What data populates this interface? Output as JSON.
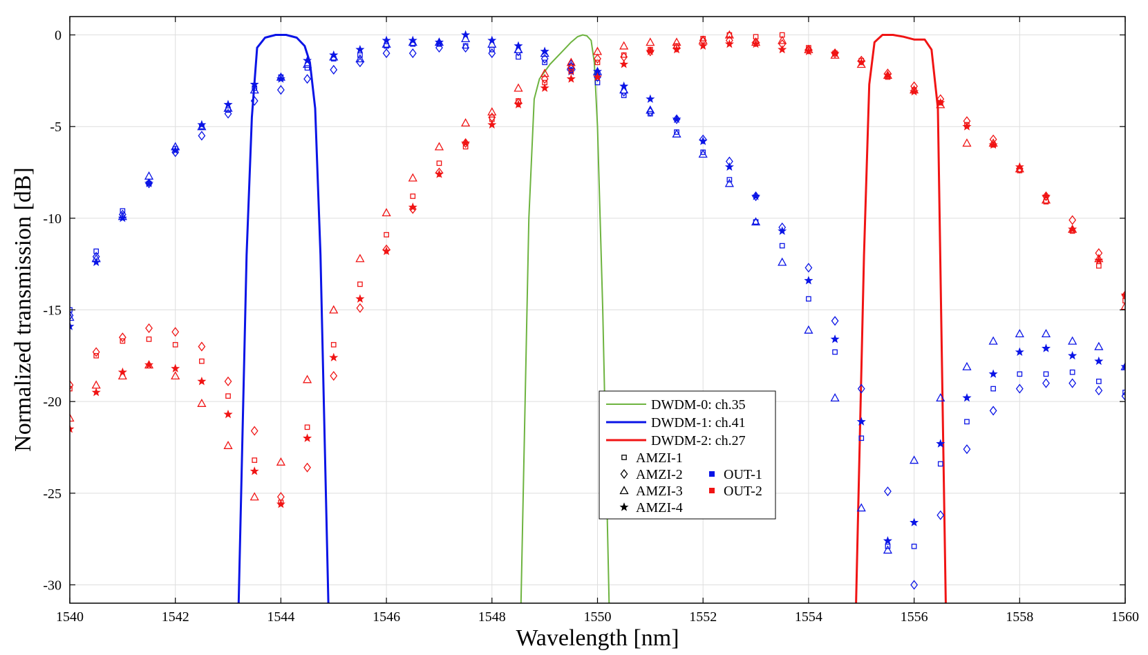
{
  "chart_data": {
    "type": "scatter",
    "title": "",
    "xlabel": "Wavelength [nm]",
    "ylabel": "Normalized transmission [dB]",
    "xlim": [
      1540,
      1560
    ],
    "ylim": [
      -31,
      1
    ],
    "xticks": [
      1540,
      1542,
      1544,
      1546,
      1548,
      1550,
      1552,
      1554,
      1556,
      1558,
      1560
    ],
    "yticks": [
      0,
      -5,
      -10,
      -15,
      -20,
      -25,
      -30
    ],
    "grid": true,
    "colors": {
      "OUT-1": "#0a14e6",
      "OUT-2": "#f01414",
      "DWDM-0": "#6db33f",
      "DWDM-1": "#0a14e6",
      "DWDM-2": "#f01414"
    },
    "lines": [
      {
        "name": "DWDM-0: ch.35",
        "color": "#6db33f",
        "width": 2,
        "x": [
          1548.55,
          1548.7,
          1548.8,
          1548.9,
          1549.1,
          1549.3,
          1549.5,
          1549.62,
          1549.72,
          1549.8,
          1549.88,
          1549.94,
          1550.0,
          1550.1,
          1550.22
        ],
        "y": [
          -31,
          -10,
          -3.5,
          -2.4,
          -1.6,
          -1.0,
          -0.4,
          -0.1,
          0,
          -0.05,
          -0.3,
          -1.5,
          -5,
          -15,
          -31
        ]
      },
      {
        "name": "DWDM-1: ch.41",
        "color": "#0a14e6",
        "width": 3,
        "x": [
          1543.2,
          1543.35,
          1543.45,
          1543.55,
          1543.7,
          1543.9,
          1544.1,
          1544.3,
          1544.45,
          1544.55,
          1544.65,
          1544.75,
          1544.9
        ],
        "y": [
          -31,
          -12,
          -4.5,
          -0.7,
          -0.15,
          0,
          0,
          -0.15,
          -0.6,
          -1.5,
          -4,
          -12,
          -31
        ]
      },
      {
        "name": "DWDM-2: ch.27",
        "color": "#f01414",
        "width": 3,
        "x": [
          1554.9,
          1555.05,
          1555.15,
          1555.25,
          1555.4,
          1555.6,
          1555.8,
          1556.0,
          1556.2,
          1556.33,
          1556.45,
          1556.6
        ],
        "y": [
          -31,
          -12,
          -2.7,
          -0.4,
          0,
          0,
          -0.1,
          -0.25,
          -0.25,
          -0.8,
          -4,
          -31
        ]
      }
    ],
    "scatter_series": [
      {
        "name": "OUT-1 AMZI-1",
        "output": "OUT-1",
        "marker": "square",
        "x": [
          1540,
          1540.5,
          1541,
          1541.5,
          1542,
          1542.5,
          1543,
          1543.5,
          1544,
          1544.5,
          1545,
          1545.5,
          1546,
          1546.5,
          1547,
          1547.5,
          1548,
          1548.5,
          1549,
          1549.5,
          1550,
          1550.5,
          1551,
          1551.5,
          1552,
          1552.5,
          1553,
          1553.5,
          1554,
          1554.5,
          1555,
          1555.5,
          1556,
          1556.5,
          1557,
          1557.5,
          1558,
          1558.5,
          1559,
          1559.5,
          1560
        ],
        "y": [
          -15.0,
          -11.8,
          -9.6,
          -8.1,
          -6.2,
          -5.0,
          -4.1,
          -2.9,
          -2.3,
          -1.8,
          -1.3,
          -1.1,
          -0.6,
          -0.5,
          -0.5,
          -0.6,
          -0.8,
          -1.2,
          -1.5,
          -1.7,
          -2.6,
          -3.3,
          -4.3,
          -5.3,
          -6.4,
          -7.9,
          -10.2,
          -11.5,
          -14.4,
          -17.3,
          -22.0,
          -27.9,
          -27.9,
          -23.4,
          -21.1,
          -19.3,
          -18.5,
          -18.5,
          -18.4,
          -18.9,
          -19.5
        ]
      },
      {
        "name": "OUT-1 AMZI-2",
        "output": "OUT-1",
        "marker": "diamond",
        "x": [
          1540,
          1540.5,
          1541,
          1541.5,
          1542,
          1542.5,
          1543,
          1543.5,
          1544,
          1544.5,
          1545,
          1545.5,
          1546,
          1546.5,
          1547,
          1547.5,
          1548,
          1548.5,
          1549,
          1549.5,
          1550,
          1550.5,
          1551,
          1551.5,
          1552,
          1552.5,
          1553,
          1553.5,
          1554,
          1554.5,
          1555,
          1555.5,
          1556,
          1556.5,
          1557,
          1557.5,
          1558,
          1558.5,
          1559,
          1559.5,
          1560
        ],
        "y": [
          -15.3,
          -12.1,
          -9.8,
          -8.1,
          -6.4,
          -5.5,
          -4.3,
          -3.6,
          -3.0,
          -2.4,
          -1.9,
          -1.5,
          -1.0,
          -1.0,
          -0.7,
          -0.7,
          -1.0,
          -0.9,
          -1.3,
          -1.6,
          -2.3,
          -3.1,
          -4.2,
          -4.6,
          -5.7,
          -6.9,
          -8.8,
          -10.5,
          -12.7,
          -15.6,
          -19.3,
          -24.9,
          -30.0,
          -26.2,
          -22.6,
          -20.5,
          -19.3,
          -19.0,
          -19.0,
          -19.4,
          -19.7
        ]
      },
      {
        "name": "OUT-1 AMZI-3",
        "output": "OUT-1",
        "marker": "triangle",
        "x": [
          1540,
          1540.5,
          1541,
          1541.5,
          1542,
          1542.5,
          1543,
          1543.5,
          1544,
          1544.5,
          1545,
          1545.5,
          1546,
          1546.5,
          1547,
          1547.5,
          1548,
          1548.5,
          1549,
          1549.5,
          1550,
          1550.5,
          1551,
          1551.5,
          1552,
          1552.5,
          1553,
          1553.5,
          1554,
          1554.5,
          1555,
          1555.5,
          1556,
          1556.5,
          1557,
          1557.5,
          1558,
          1558.5,
          1559,
          1559.5,
          1560
        ],
        "y": [
          -15.4,
          -12.2,
          -9.9,
          -7.7,
          -6.1,
          -5.0,
          -4.0,
          -3.0,
          -2.3,
          -1.6,
          -1.2,
          -1.3,
          -0.5,
          -0.4,
          -0.4,
          -0.2,
          -0.5,
          -0.8,
          -1.0,
          -1.7,
          -2.0,
          -3.0,
          -4.1,
          -5.4,
          -6.5,
          -8.1,
          -10.2,
          -12.4,
          -16.1,
          -19.8,
          -25.8,
          -28.1,
          -23.2,
          -19.8,
          -18.1,
          -16.7,
          -16.3,
          -16.3,
          -16.7,
          -17.0,
          -18.1
        ]
      },
      {
        "name": "OUT-1 AMZI-4",
        "output": "OUT-1",
        "marker": "star",
        "x": [
          1540,
          1540.5,
          1541,
          1541.5,
          1542,
          1542.5,
          1543,
          1543.5,
          1544,
          1544.5,
          1545,
          1545.5,
          1546,
          1546.5,
          1547,
          1547.5,
          1548,
          1548.5,
          1549,
          1549.5,
          1550,
          1550.5,
          1551,
          1551.5,
          1552,
          1552.5,
          1553,
          1553.5,
          1554,
          1554.5,
          1555,
          1555.5,
          1556,
          1556.5,
          1557,
          1557.5,
          1558,
          1558.5,
          1559,
          1559.5,
          1560
        ],
        "y": [
          -15.9,
          -12.4,
          -10.0,
          -8.1,
          -6.3,
          -4.9,
          -3.8,
          -2.7,
          -2.4,
          -1.4,
          -1.1,
          -0.8,
          -0.3,
          -0.3,
          -0.4,
          0.0,
          -0.3,
          -0.6,
          -0.9,
          -2.0,
          -2.0,
          -2.8,
          -3.5,
          -4.6,
          -5.8,
          -7.2,
          -8.8,
          -10.7,
          -13.4,
          -16.6,
          -21.1,
          -27.6,
          -26.6,
          -22.3,
          -19.8,
          -18.5,
          -17.3,
          -17.1,
          -17.5,
          -17.8,
          -18.1
        ]
      },
      {
        "name": "OUT-2 AMZI-1",
        "output": "OUT-2",
        "marker": "square",
        "x": [
          1540,
          1540.5,
          1541,
          1541.5,
          1542,
          1542.5,
          1543,
          1543.5,
          1544,
          1544.5,
          1545,
          1545.5,
          1546,
          1546.5,
          1547,
          1547.5,
          1548,
          1548.5,
          1549,
          1549.5,
          1550,
          1550.5,
          1551,
          1551.5,
          1552,
          1552.5,
          1553,
          1553.5,
          1554,
          1554.5,
          1555,
          1555.5,
          1556,
          1556.5,
          1557,
          1557.5,
          1558,
          1558.5,
          1559,
          1559.5,
          1560
        ],
        "y": [
          -19.3,
          -17.5,
          -16.7,
          -16.6,
          -16.9,
          -17.8,
          -19.7,
          -23.2,
          -25.5,
          -21.4,
          -16.9,
          -13.6,
          -10.9,
          -8.8,
          -7.0,
          -6.1,
          -4.6,
          -3.6,
          -2.6,
          -2.0,
          -1.5,
          -1.1,
          -0.8,
          -0.6,
          -0.2,
          0.0,
          -0.1,
          0.0,
          -0.7,
          -1.0,
          -1.4,
          -2.3,
          -3.0,
          -3.7,
          -4.9,
          -6.0,
          -7.4,
          -9.1,
          -10.7,
          -12.6,
          -14.5
        ]
      },
      {
        "name": "OUT-2 AMZI-2",
        "output": "OUT-2",
        "marker": "diamond",
        "x": [
          1540,
          1540.5,
          1541,
          1541.5,
          1542,
          1542.5,
          1543,
          1543.5,
          1544,
          1544.5,
          1545,
          1545.5,
          1546,
          1546.5,
          1547,
          1547.5,
          1548,
          1548.5,
          1549,
          1549.5,
          1550,
          1550.5,
          1551,
          1551.5,
          1552,
          1552.5,
          1553,
          1553.5,
          1554,
          1554.5,
          1555,
          1555.5,
          1556,
          1556.5,
          1557,
          1557.5,
          1558,
          1558.5,
          1559,
          1559.5,
          1560
        ],
        "y": [
          -19.1,
          -17.3,
          -16.5,
          -16.0,
          -16.2,
          -17.0,
          -18.9,
          -21.6,
          -25.2,
          -23.6,
          -18.6,
          -14.9,
          -11.7,
          -9.5,
          -7.5,
          -5.9,
          -4.5,
          -3.7,
          -2.4,
          -1.8,
          -1.3,
          -1.2,
          -0.9,
          -0.7,
          -0.3,
          -0.3,
          -0.4,
          -0.5,
          -0.8,
          -1.0,
          -1.4,
          -2.1,
          -2.8,
          -3.5,
          -4.7,
          -5.7,
          -7.3,
          -8.8,
          -10.1,
          -11.9,
          -14.2
        ]
      },
      {
        "name": "OUT-2 AMZI-3",
        "output": "OUT-2",
        "marker": "triangle",
        "x": [
          1540,
          1540.5,
          1541,
          1541.5,
          1542,
          1542.5,
          1543,
          1543.5,
          1544,
          1544.5,
          1545,
          1545.5,
          1546,
          1546.5,
          1547,
          1547.5,
          1548,
          1548.5,
          1549,
          1549.5,
          1550,
          1550.5,
          1551,
          1551.5,
          1552,
          1552.5,
          1553,
          1553.5,
          1554,
          1554.5,
          1555,
          1555.5,
          1556,
          1556.5,
          1557,
          1557.5,
          1558,
          1558.5,
          1559,
          1559.5,
          1560
        ],
        "y": [
          -20.9,
          -19.1,
          -18.6,
          -18.0,
          -18.6,
          -20.1,
          -22.4,
          -25.2,
          -23.3,
          -18.8,
          -15.0,
          -12.2,
          -9.7,
          -7.8,
          -6.1,
          -4.8,
          -4.2,
          -2.9,
          -2.1,
          -1.5,
          -0.9,
          -0.6,
          -0.4,
          -0.4,
          -0.3,
          0.0,
          -0.4,
          -0.3,
          -0.8,
          -1.1,
          -1.6,
          -2.2,
          -3.0,
          -3.8,
          -5.9,
          -5.9,
          -7.3,
          -9.0,
          -10.6,
          -12.2,
          -14.8
        ]
      },
      {
        "name": "OUT-2 AMZI-4",
        "output": "OUT-2",
        "marker": "star",
        "x": [
          1540,
          1540.5,
          1541,
          1541.5,
          1542,
          1542.5,
          1543,
          1543.5,
          1544,
          1544.5,
          1545,
          1545.5,
          1546,
          1546.5,
          1547,
          1547.5,
          1548,
          1548.5,
          1549,
          1549.5,
          1550,
          1550.5,
          1551,
          1551.5,
          1552,
          1552.5,
          1553,
          1553.5,
          1554,
          1554.5,
          1555,
          1555.5,
          1556,
          1556.5,
          1557,
          1557.5,
          1558,
          1558.5,
          1559,
          1559.5,
          1560
        ],
        "y": [
          -21.5,
          -19.5,
          -18.4,
          -18.0,
          -18.2,
          -18.9,
          -20.7,
          -23.8,
          -25.6,
          -22.0,
          -17.6,
          -14.4,
          -11.8,
          -9.4,
          -7.6,
          -5.9,
          -4.9,
          -3.8,
          -2.9,
          -2.4,
          -2.3,
          -1.6,
          -0.9,
          -0.8,
          -0.6,
          -0.5,
          -0.5,
          -0.8,
          -0.9,
          -1.0,
          -1.5,
          -2.2,
          -3.1,
          -3.7,
          -5.0,
          -6.0,
          -7.2,
          -8.8,
          -10.6,
          -12.3,
          -14.2
        ]
      }
    ],
    "legend": {
      "position": "bottom-center",
      "line_entries": [
        {
          "label": "DWDM-0: ch.35",
          "color": "#6db33f"
        },
        {
          "label": "DWDM-1: ch.41",
          "color": "#0a14e6"
        },
        {
          "label": "DWDM-2: ch.27",
          "color": "#f01414"
        }
      ],
      "marker_entries": [
        {
          "label": "AMZI-1",
          "marker": "square"
        },
        {
          "label": "AMZI-2",
          "marker": "diamond"
        },
        {
          "label": "AMZI-3",
          "marker": "triangle"
        },
        {
          "label": "AMZI-4",
          "marker": "star"
        }
      ],
      "color_entries": [
        {
          "label": "OUT-1",
          "color": "#0a14e6"
        },
        {
          "label": "OUT-2",
          "color": "#f01414"
        }
      ]
    }
  }
}
